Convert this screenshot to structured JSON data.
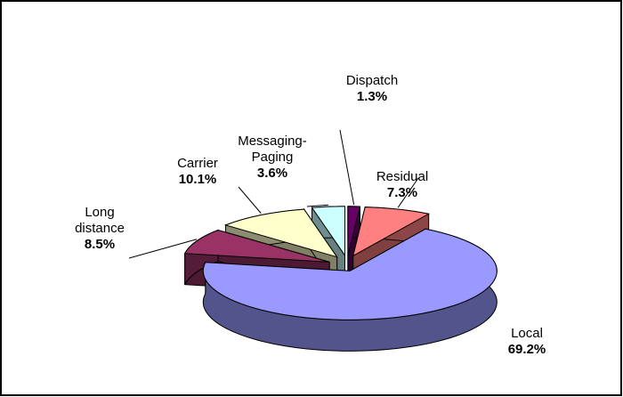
{
  "chart_data": {
    "type": "pie3d",
    "categories": [
      "Dispatch",
      "Residual",
      "Local",
      "Long distance",
      "Carrier",
      "Messaging-Paging"
    ],
    "values": [
      1.3,
      7.3,
      69.2,
      8.5,
      10.1,
      3.6
    ],
    "value_labels": [
      "1.3%",
      "7.3%",
      "69.2%",
      "8.5%",
      "10.1%",
      "3.6%"
    ],
    "colors": [
      "#660066",
      "#ff8080",
      "#9999ff",
      "#993366",
      "#ffffcc",
      "#ccffff"
    ]
  }
}
